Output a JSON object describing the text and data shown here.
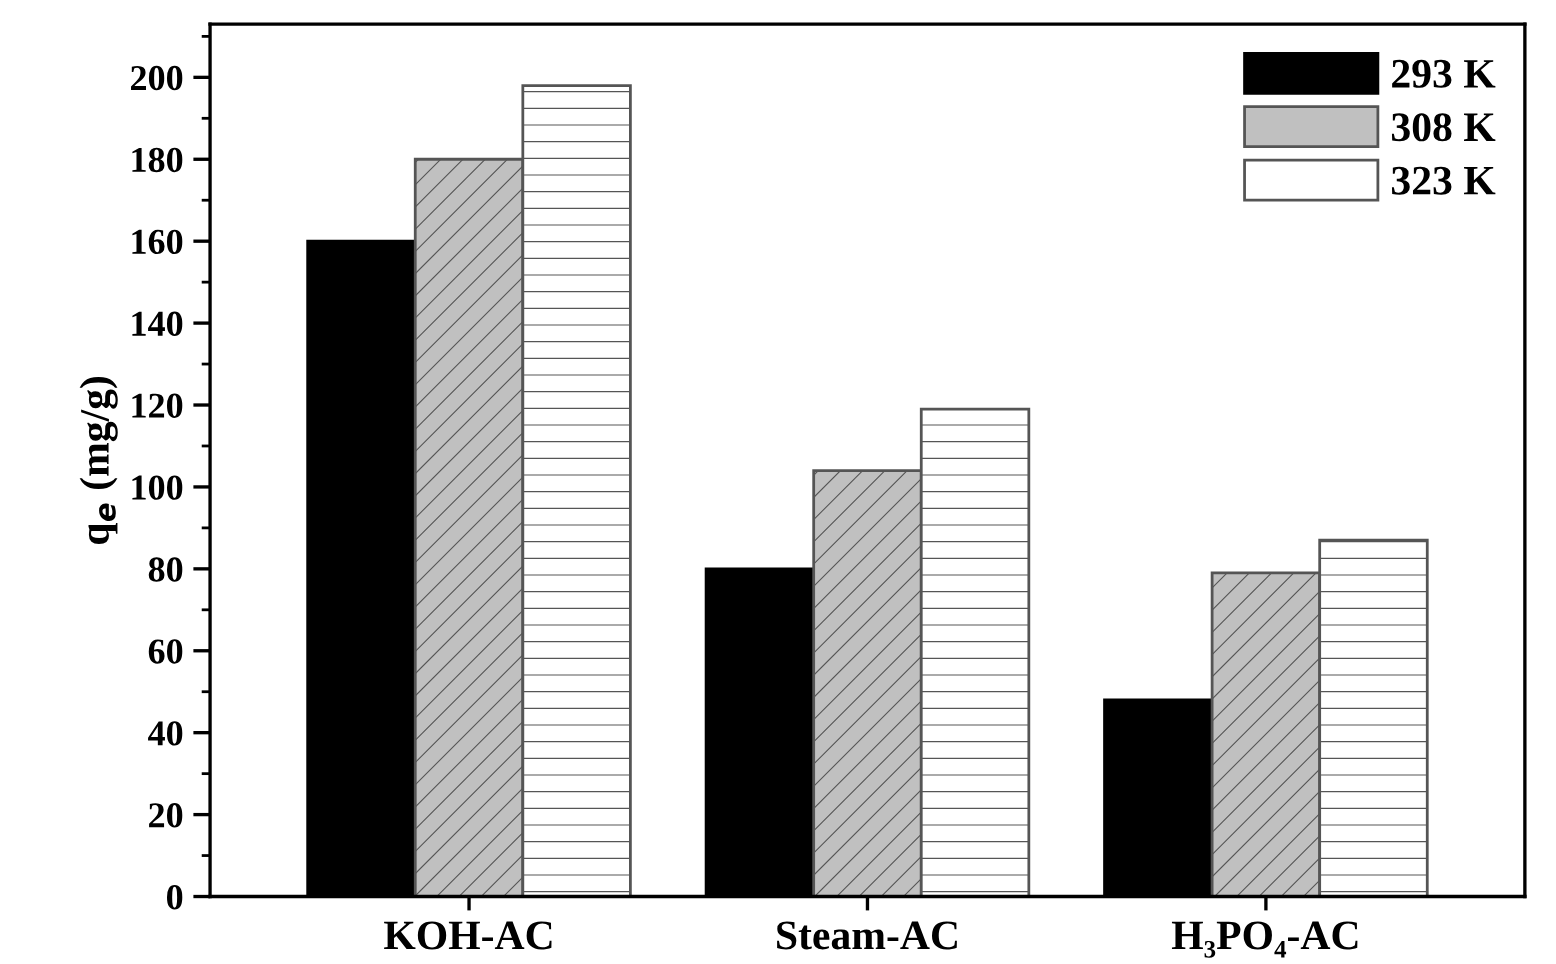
{
  "chart_data": {
    "type": "bar",
    "ylabel": "q$_{e}$ (mg/g)",
    "categories": [
      "KOH-AC",
      "Steam-AC",
      "H₃PO₄-AC"
    ],
    "series": [
      {
        "name": "293 K",
        "color": "#000000",
        "values": [
          160,
          80,
          48
        ]
      },
      {
        "name": "308 K",
        "color": "#c0c0c0",
        "values": [
          180,
          104,
          79
        ]
      },
      {
        "name": "323 K",
        "color": "#ffffff",
        "values": [
          198,
          119,
          87
        ]
      }
    ],
    "ylim": [
      0,
      213
    ],
    "yticks": [
      0,
      {
        "value": 10,
        "label": null
      },
      20,
      {
        "value": 30,
        "label": null
      },
      40,
      {
        "value": 50,
        "label": null
      },
      60,
      {
        "value": 70,
        "label": null
      },
      80,
      {
        "value": 90,
        "label": null
      },
      100,
      {
        "value": 110,
        "label": null
      },
      120,
      {
        "value": 130,
        "label": null
      },
      140,
      {
        "value": 150,
        "label": null
      },
      160,
      {
        "value": 170,
        "label": null
      },
      180,
      {
        "value": 190,
        "label": null
      },
      200,
      {
        "value": 210,
        "label": null
      }
    ],
    "legend": "top right",
    "grid": false
  }
}
